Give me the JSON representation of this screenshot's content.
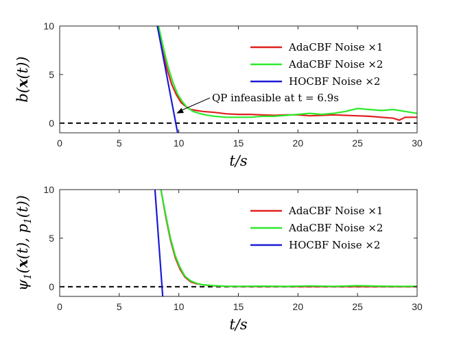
{
  "chart_data": [
    {
      "type": "line",
      "ylabel": "b(x(t))",
      "xlabel": "t/s",
      "xlim": [
        0,
        30
      ],
      "ylim": [
        -1,
        10
      ],
      "xticks": [
        "0",
        "5",
        "10",
        "15",
        "20",
        "25",
        "30"
      ],
      "yticks": [
        "0",
        "5",
        "10"
      ],
      "reference_line": {
        "y": 0,
        "style": "dashed",
        "color": "#000000"
      },
      "series": [
        {
          "name": "AdaCBF Noise ×1",
          "color": "#e11d1d",
          "x": [
            8.2,
            8.6,
            9.0,
            9.4,
            9.8,
            10.2,
            10.6,
            11.0,
            12,
            13,
            14,
            15,
            16,
            17,
            18,
            19,
            20,
            21,
            22,
            23,
            24,
            25,
            26,
            27,
            28,
            28.5,
            29,
            30
          ],
          "y": [
            10,
            7.6,
            5.6,
            4.0,
            2.9,
            2.1,
            1.7,
            1.4,
            1.2,
            1.1,
            0.95,
            0.9,
            0.9,
            0.85,
            0.8,
            0.85,
            0.85,
            0.75,
            0.8,
            0.85,
            0.8,
            0.75,
            0.7,
            0.6,
            0.5,
            0.3,
            0.6,
            0.6
          ]
        },
        {
          "name": "AdaCBF Noise ×2",
          "color": "#2bea2b",
          "x": [
            8.3,
            8.7,
            9.1,
            9.5,
            9.9,
            10.3,
            10.7,
            11.2,
            12,
            13,
            14,
            15,
            16,
            17,
            18,
            19,
            20,
            21,
            22,
            23,
            24,
            25,
            26,
            27,
            28,
            29,
            30
          ],
          "y": [
            10,
            7.8,
            5.8,
            4.2,
            3.0,
            2.2,
            1.6,
            1.2,
            0.9,
            0.7,
            0.6,
            0.6,
            0.6,
            0.7,
            0.7,
            0.8,
            0.9,
            1.0,
            0.9,
            1.0,
            1.2,
            1.5,
            1.4,
            1.3,
            1.4,
            1.2,
            1.0
          ]
        },
        {
          "name": "HOCBF Noise ×2",
          "color": "#1a1ad6",
          "x": [
            8.2,
            9.9
          ],
          "y": [
            10,
            -1.0
          ]
        }
      ],
      "legend": {
        "position": "top-right",
        "entries": [
          "AdaCBF Noise ×1",
          "AdaCBF Noise ×2",
          "HOCBF Noise ×2"
        ]
      },
      "annotation": {
        "text": "QP infeasible at t = 6.9s",
        "arrow_to": {
          "x": 9.8,
          "y": 1.0
        }
      }
    },
    {
      "type": "line",
      "ylabel": "ψ1(x(t), p1(t))",
      "xlabel": "t/s",
      "xlim": [
        0,
        30
      ],
      "ylim": [
        -1,
        10
      ],
      "xticks": [
        "0",
        "5",
        "10",
        "15",
        "20",
        "25",
        "30"
      ],
      "yticks": [
        "0",
        "5",
        "10"
      ],
      "reference_line": {
        "y": 0,
        "style": "dashed",
        "color": "#000000"
      },
      "series": [
        {
          "name": "AdaCBF Noise ×1",
          "color": "#e11d1d",
          "x": [
            8.5,
            8.9,
            9.3,
            9.7,
            10.1,
            10.5,
            11.0,
            11.5,
            12,
            13,
            14,
            15,
            20,
            25,
            30
          ],
          "y": [
            10,
            7.2,
            4.8,
            3.0,
            1.8,
            1.0,
            0.5,
            0.3,
            0.2,
            0.08,
            0.04,
            0.02,
            0.01,
            0.01,
            0.0
          ]
        },
        {
          "name": "AdaCBF Noise ×2",
          "color": "#2bea2b",
          "x": [
            8.5,
            8.9,
            9.3,
            9.7,
            10.1,
            10.5,
            11.0,
            11.5,
            12,
            13,
            14,
            15,
            17,
            19,
            21,
            23,
            25,
            27,
            29,
            30
          ],
          "y": [
            10,
            7.4,
            5.0,
            3.2,
            2.0,
            1.1,
            0.6,
            0.35,
            0.2,
            0.1,
            0.05,
            0.04,
            0.06,
            0.03,
            0.08,
            0.04,
            0.1,
            0.05,
            0.04,
            0.05
          ]
        },
        {
          "name": "HOCBF Noise ×2",
          "color": "#1a1ad6",
          "x": [
            8.0,
            8.65
          ],
          "y": [
            10,
            -1.0
          ]
        }
      ],
      "legend": {
        "position": "top-right",
        "entries": [
          "AdaCBF Noise ×1",
          "AdaCBF Noise ×2",
          "HOCBF Noise ×2"
        ]
      }
    }
  ]
}
